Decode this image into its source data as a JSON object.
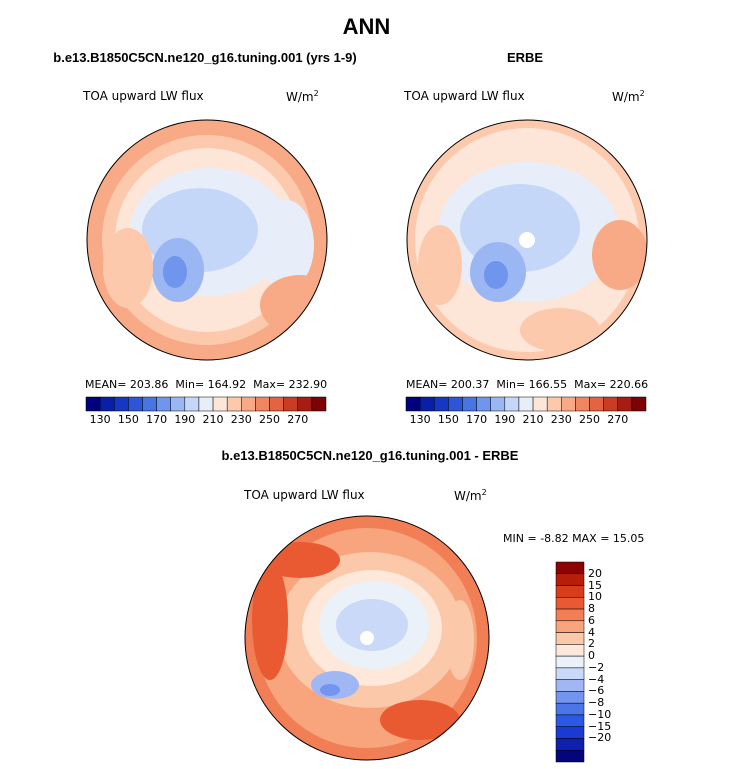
{
  "figure": {
    "title": "ANN"
  },
  "colors": {
    "abs_levels": [
      "#00007f",
      "#0a1fa8",
      "#1537c4",
      "#2c55d8",
      "#4874e4",
      "#6f95ec",
      "#9ab6f3",
      "#c5d7f9",
      "#e7eef9",
      "#fde6d8",
      "#fcc9ad",
      "#f8a985",
      "#f08762",
      "#e46342",
      "#cb3c26",
      "#a61d12",
      "#7a0404"
    ],
    "diff_levels": [
      "#04047c",
      "#0f1fb0",
      "#1a3ad2",
      "#2c58e6",
      "#4b76ea",
      "#7395ef",
      "#a0b7f4",
      "#cad9f8",
      "#eaf1f9",
      "#fde8d9",
      "#fbc8a9",
      "#f8a47c",
      "#f27e56",
      "#e95a33",
      "#d73c1d",
      "#b71e0a",
      "#8c0303"
    ],
    "land": "#000000"
  },
  "chart_data": [
    {
      "type": "heatmap",
      "projection": "north-polar-stereographic",
      "title": "b.e13.B1850C5CN.ne120_g16.tuning.001 (yrs 1-9)",
      "left_label": "TOA upward LW flux",
      "units_base": "W/m",
      "units_exp": "2",
      "stats": {
        "mean_label": "MEAN=",
        "mean": "203.86",
        "min_label": "Min=",
        "min": "164.92",
        "max_label": "Max=",
        "max": "232.90"
      },
      "colorbar": {
        "orientation": "horizontal",
        "contour_levels": [
          130,
          140,
          150,
          160,
          170,
          180,
          190,
          200,
          210,
          220,
          230,
          240,
          250,
          260,
          270,
          280
        ],
        "tick_labels": [
          "130",
          "150",
          "170",
          "190",
          "210",
          "230",
          "250",
          "270"
        ]
      }
    },
    {
      "type": "heatmap",
      "projection": "north-polar-stereographic",
      "title": "ERBE",
      "left_label": "TOA upward LW flux",
      "units_base": "W/m",
      "units_exp": "2",
      "stats": {
        "mean_label": "MEAN=",
        "mean": "200.37",
        "min_label": "Min=",
        "min": "166.55",
        "max_label": "Max=",
        "max": "220.66"
      },
      "colorbar": {
        "orientation": "horizontal",
        "contour_levels": [
          130,
          140,
          150,
          160,
          170,
          180,
          190,
          200,
          210,
          220,
          230,
          240,
          250,
          260,
          270,
          280
        ],
        "tick_labels": [
          "130",
          "150",
          "170",
          "190",
          "210",
          "230",
          "250",
          "270"
        ]
      }
    },
    {
      "type": "heatmap",
      "projection": "north-polar-stereographic",
      "title": "b.e13.B1850C5CN.ne120_g16.tuning.001 - ERBE",
      "left_label": "TOA upward LW flux",
      "units_base": "W/m",
      "units_exp": "2",
      "stats": {
        "min_label": "MIN =",
        "min": "-8.82",
        "max_label": "MAX =",
        "max": "15.05"
      },
      "colorbar": {
        "orientation": "vertical",
        "contour_levels": [
          -20,
          -15,
          -10,
          -8,
          -6,
          -4,
          -2,
          0,
          2,
          4,
          6,
          8,
          10,
          15,
          20
        ],
        "tick_labels": [
          "20",
          "15",
          "10",
          "8",
          "6",
          "4",
          "2",
          "0",
          "−2",
          "−4",
          "−6",
          "−8",
          "−10",
          "−15",
          "−20"
        ]
      }
    }
  ]
}
